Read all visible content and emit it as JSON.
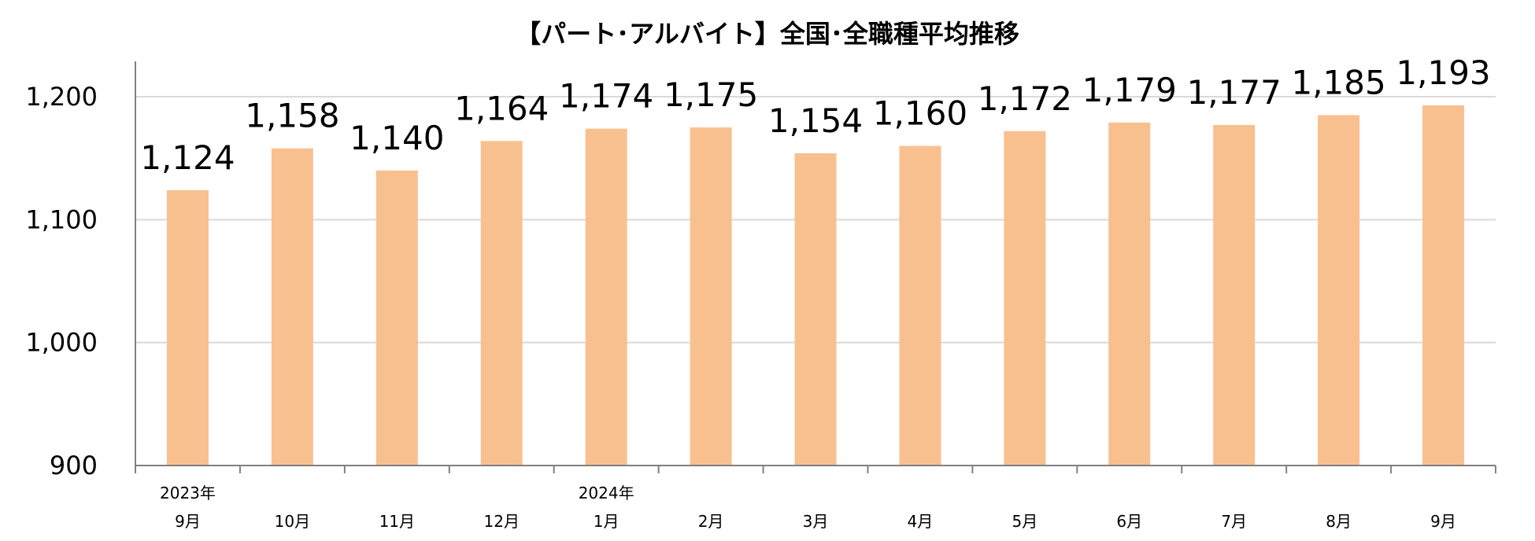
{
  "chart_data": {
    "type": "bar",
    "title": "【パート･アルバイト】全国･全職種平均推移",
    "xlabel": "",
    "ylabel": "",
    "ylim": [
      900,
      1230
    ],
    "yticks": [
      "900",
      "1,000",
      "1,100",
      "1,200"
    ],
    "ytick_values": [
      900,
      1000,
      1100,
      1200
    ],
    "categories": [
      "9月",
      "10月",
      "11月",
      "12月",
      "1月",
      "2月",
      "3月",
      "4月",
      "5月",
      "6月",
      "7月",
      "8月",
      "9月"
    ],
    "year_labels": [
      "2023年",
      "",
      "",
      "",
      "2024年",
      "",
      "",
      "",
      "",
      "",
      "",
      "",
      ""
    ],
    "values": [
      1124,
      1158,
      1140,
      1164,
      1174,
      1175,
      1154,
      1160,
      1172,
      1179,
      1177,
      1185,
      1193
    ],
    "value_labels": [
      "1,124",
      "1,158",
      "1,140",
      "1,164",
      "1,174",
      "1,175",
      "1,154",
      "1,160",
      "1,172",
      "1,179",
      "1,177",
      "1,185",
      "1,193"
    ],
    "grid": true,
    "legend": "none",
    "bar_color": "#F9C08F",
    "grid_color": "#D9D9D9",
    "axis_color": "#808080"
  }
}
